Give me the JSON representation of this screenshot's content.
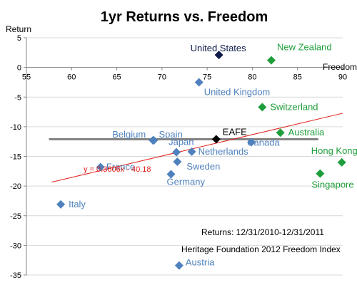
{
  "chart_data": {
    "type": "scatter",
    "title": "1yr Returns vs. Freedom",
    "ylabel": "Return",
    "xlabel": "Freedom",
    "xlim": [
      55,
      90
    ],
    "ylim": [
      -35,
      5
    ],
    "x_ticks": [
      55,
      60,
      65,
      70,
      75,
      80,
      85,
      90
    ],
    "y_ticks": [
      5,
      0,
      -5,
      -10,
      -15,
      -20,
      -25,
      -30,
      -35
    ],
    "colors": {
      "green": "#1e9e3a",
      "blue": "#4f81bd",
      "navy": "#0d1a4a",
      "black": "#000000",
      "trendline": "#e0201b",
      "eafe_line": "#7f7f7f"
    },
    "points": [
      {
        "label": "United States",
        "x": 76.3,
        "y": 2.1,
        "color": "navy"
      },
      {
        "label": "New Zealand",
        "x": 82.1,
        "y": 1.2,
        "color": "green"
      },
      {
        "label": "United Kingdom",
        "x": 74.1,
        "y": -2.5,
        "color": "blue"
      },
      {
        "label": "Switzerland",
        "x": 81.1,
        "y": -6.7,
        "color": "green"
      },
      {
        "label": "Australia",
        "x": 83.1,
        "y": -11.0,
        "color": "green"
      },
      {
        "label": "Hong Kong",
        "x": 89.9,
        "y": -16.0,
        "color": "green"
      },
      {
        "label": "Singapore",
        "x": 87.5,
        "y": -17.9,
        "color": "green"
      },
      {
        "label": "Belgium",
        "x": 69.0,
        "y": -12.3,
        "color": "blue"
      },
      {
        "label": "Spain",
        "x": 69.1,
        "y": -12.3,
        "color": "blue"
      },
      {
        "label": "EAFE",
        "x": 76.0,
        "y": -12.1,
        "color": "black"
      },
      {
        "label": "Canada",
        "x": 79.9,
        "y": -12.6,
        "color": "blue"
      },
      {
        "label": "Japan",
        "x": 71.6,
        "y": -14.3,
        "color": "blue"
      },
      {
        "label": "Netherlands",
        "x": 73.3,
        "y": -14.2,
        "color": "blue"
      },
      {
        "label": "Sweden",
        "x": 71.7,
        "y": -15.9,
        "color": "blue"
      },
      {
        "label": "France",
        "x": 63.2,
        "y": -16.8,
        "color": "blue"
      },
      {
        "label": "Germany",
        "x": 71.0,
        "y": -18.0,
        "color": "blue"
      },
      {
        "label": "Italy",
        "x": 58.8,
        "y": -23.1,
        "color": "blue"
      },
      {
        "label": "Austria",
        "x": 71.9,
        "y": -33.4,
        "color": "blue"
      }
    ],
    "trendline": {
      "equation": "y = 0.3606x - 40.18",
      "slope": 0.3606,
      "intercept": -40.18,
      "x_start": 57.8,
      "x_end": 90
    },
    "eafe_line": {
      "y": -12.1,
      "x_start": 57.5,
      "x_end": 87.3
    },
    "annotations": [
      "Returns: 12/31/2010-12/31/2011",
      "Heritage Foundation 2012 Freedom Index"
    ]
  }
}
